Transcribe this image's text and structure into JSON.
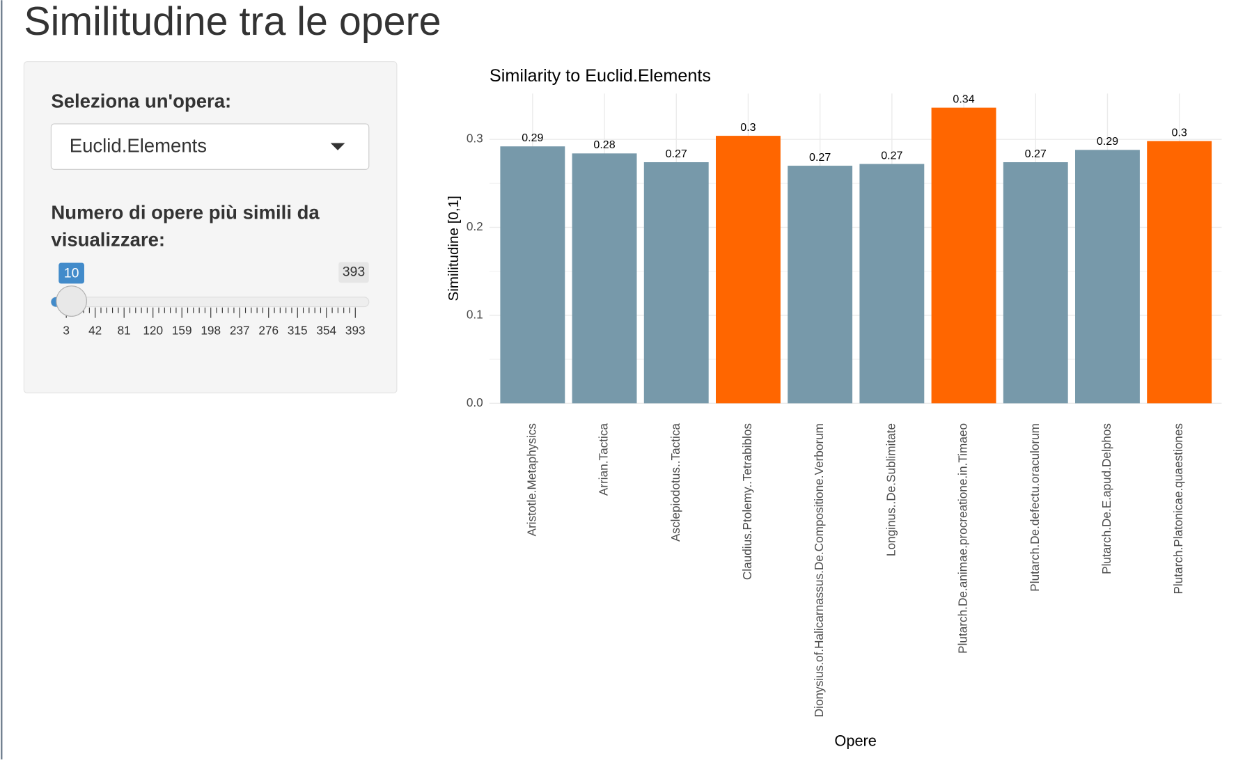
{
  "header": {
    "title": "Similitudine tra le opere"
  },
  "sidebar": {
    "select": {
      "label": "Seleziona un'opera:",
      "selected": "Euclid.Elements"
    },
    "slider": {
      "label": "Numero di opere più simili da visualizzare:",
      "value": 10,
      "min": 3,
      "max": 393,
      "ticks": [
        3,
        42,
        81,
        120,
        159,
        198,
        237,
        276,
        315,
        354,
        393
      ]
    }
  },
  "chart_data": {
    "type": "bar",
    "title": "Similarity to Euclid.Elements",
    "x_label": "Opere",
    "y_label": "Similitudine [0,1]",
    "categories": [
      "Aristotle.Metaphysics",
      "Arrian.Tactica",
      "Asclepiodotus..Tactica",
      "Claudius.Ptolemy..Tetrabiblos",
      "Dionysius.of.Halicarnassus.De.Compositione.Verborum",
      "Longinus..De.Sublimitate",
      "Plutarch.De.animae.procreatione.in.Timaeo",
      "Plutarch.De.defectu.oraculorum",
      "Plutarch.De.E.apud.Delphos",
      "Plutarch.Platonicae.quaestiones"
    ],
    "values": [
      0.292,
      0.284,
      0.274,
      0.304,
      0.27,
      0.272,
      0.336,
      0.274,
      0.288,
      0.298
    ],
    "value_labels": [
      "0.29",
      "0.28",
      "0.27",
      "0.3",
      "0.27",
      "0.27",
      "0.34",
      "0.27",
      "0.29",
      "0.3"
    ],
    "colors": [
      "#7799aa",
      "#7799aa",
      "#7799aa",
      "#ff6600",
      "#7799aa",
      "#7799aa",
      "#ff6600",
      "#7799aa",
      "#7799aa",
      "#ff6600"
    ],
    "ylim": [
      0,
      0.352
    ],
    "yticks": [
      {
        "value": 0,
        "label": "0.0"
      },
      0.1,
      0.2,
      0.3
    ],
    "grid": true
  }
}
